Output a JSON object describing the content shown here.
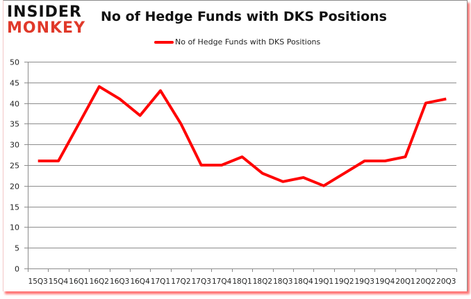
{
  "logo": {
    "line1": "INSIDER",
    "line2": "MONKEY"
  },
  "chart_data": {
    "type": "line",
    "title": "No of Hedge Funds with DKS Positions",
    "xlabel": "",
    "ylabel": "",
    "ylim": [
      0,
      50
    ],
    "yticks": [
      0,
      5,
      10,
      15,
      20,
      25,
      30,
      35,
      40,
      45,
      50
    ],
    "grid": true,
    "legend_position": "top",
    "categories": [
      "15Q3",
      "15Q4",
      "16Q1",
      "16Q2",
      "16Q3",
      "16Q4",
      "17Q1",
      "17Q2",
      "17Q3",
      "17Q4",
      "18Q1",
      "18Q2",
      "18Q3",
      "18Q4",
      "19Q1",
      "19Q2",
      "19Q3",
      "19Q4",
      "20Q1",
      "20Q2",
      "20Q3"
    ],
    "series": [
      {
        "name": "No of Hedge Funds with DKS Positions",
        "color": "#ff0000",
        "values": [
          26,
          26,
          35,
          44,
          41,
          37,
          43,
          35,
          25,
          25,
          27,
          23,
          21,
          22,
          20,
          23,
          26,
          26,
          27,
          40,
          41
        ]
      }
    ]
  }
}
